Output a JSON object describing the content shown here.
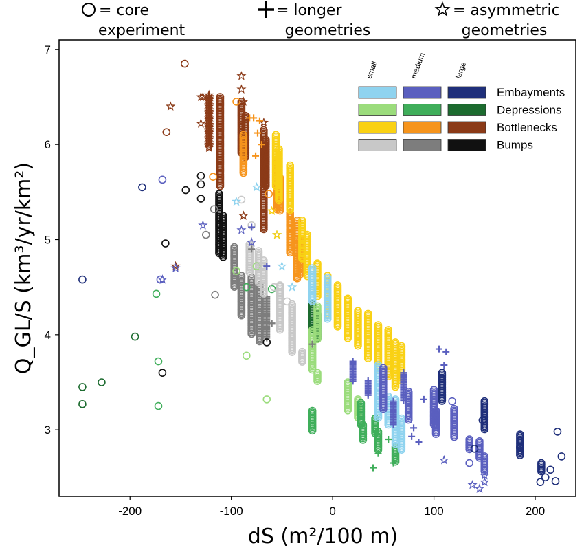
{
  "chart_data": {
    "type": "scatter",
    "xlabel": "dS (m²/100 m)",
    "ylabel": "Q_GL/S (km³/yr/km²)",
    "xlim": [
      -270,
      240
    ],
    "ylim": [
      2.3,
      7.1
    ],
    "xticks": [
      -200,
      -100,
      0,
      100,
      200
    ],
    "yticks": [
      3,
      4,
      5,
      6,
      7
    ],
    "xtick_labels": [
      "-200",
      "-100",
      "0",
      "100",
      "200"
    ],
    "ytick_labels": [
      "3",
      "4",
      "5",
      "6",
      "7"
    ],
    "marker_key": [
      {
        "marker": "circle",
        "text": [
          "= core",
          "experiment"
        ]
      },
      {
        "marker": "plus",
        "text": [
          "= longer",
          "geometries"
        ]
      },
      {
        "marker": "star",
        "text": [
          "= asymmetric",
          "geometries"
        ]
      }
    ],
    "size_labels": [
      "small",
      "medium",
      "large"
    ],
    "legend_placement": "top-right",
    "grid": false,
    "legend": [
      {
        "name": "Embayments",
        "colors": [
          "#8fd3ef",
          "#5a5fbf",
          "#1f2f7a"
        ]
      },
      {
        "name": "Depressions",
        "colors": [
          "#9bdc7c",
          "#3fae5a",
          "#1c6b2f"
        ]
      },
      {
        "name": "Bottlenecks",
        "colors": [
          "#f9d114",
          "#f6941c",
          "#8b3a17"
        ]
      },
      {
        "name": "Bumps",
        "colors": [
          "#c8c8c8",
          "#7d7d7d",
          "#111111"
        ]
      }
    ],
    "groups": [
      {
        "marker": "circle",
        "filled": false,
        "color": "#1f2f7a",
        "points": [
          [
            -247,
            4.58
          ],
          [
            -188,
            5.55
          ],
          [
            148,
            3.1
          ],
          [
            140,
            2.8
          ],
          [
            205,
            2.45
          ],
          [
            210,
            2.5
          ],
          [
            215,
            2.58
          ],
          [
            220,
            2.46
          ],
          [
            222,
            2.98
          ],
          [
            226,
            2.72
          ]
        ]
      },
      {
        "marker": "circle",
        "filled": false,
        "color": "#5a5fbf",
        "points": [
          [
            118,
            3.3
          ],
          [
            -168,
            5.63
          ],
          [
            -170,
            4.58
          ],
          [
            135,
            2.65
          ]
        ]
      },
      {
        "marker": "circle",
        "filled": false,
        "color": "#1c6b2f",
        "points": [
          [
            -247,
            3.45
          ],
          [
            -247,
            3.27
          ],
          [
            -228,
            3.5
          ],
          [
            -195,
            3.98
          ]
        ]
      },
      {
        "marker": "circle",
        "filled": false,
        "color": "#3fae5a",
        "points": [
          [
            -172,
            3.72
          ],
          [
            -172,
            3.25
          ],
          [
            -174,
            4.43
          ],
          [
            -85,
            4.5
          ],
          [
            -60,
            4.48
          ]
        ]
      },
      {
        "marker": "circle",
        "filled": false,
        "color": "#9bdc7c",
        "points": [
          [
            -85,
            3.78
          ],
          [
            -65,
            3.32
          ],
          [
            -95,
            4.67
          ],
          [
            -75,
            4.72
          ]
        ]
      },
      {
        "marker": "circle",
        "filled": false,
        "color": "#8b3a17",
        "points": [
          [
            -146,
            6.85
          ],
          [
            -164,
            6.13
          ]
        ]
      },
      {
        "marker": "circle",
        "filled": false,
        "color": "#f6941c",
        "points": [
          [
            -118,
            5.66
          ],
          [
            -95,
            6.45
          ],
          [
            -63,
            5.48
          ]
        ]
      },
      {
        "marker": "circle",
        "filled": false,
        "color": "#111111",
        "points": [
          [
            -145,
            5.52
          ],
          [
            -165,
            4.96
          ],
          [
            -168,
            3.6
          ],
          [
            -130,
            5.67
          ],
          [
            -130,
            5.58
          ],
          [
            -130,
            5.43
          ],
          [
            -65,
            3.92
          ]
        ]
      },
      {
        "marker": "circle",
        "filled": false,
        "color": "#7d7d7d",
        "points": [
          [
            -116,
            4.42
          ],
          [
            -125,
            5.05
          ],
          [
            -117,
            5.32
          ]
        ]
      },
      {
        "marker": "circle",
        "filled": false,
        "color": "#c8c8c8",
        "points": [
          [
            -90,
            5.42
          ],
          [
            -80,
            5.15
          ],
          [
            -70,
            4.72
          ],
          [
            -58,
            4.5
          ],
          [
            -45,
            4.35
          ]
        ]
      },
      {
        "marker": "star",
        "filled": false,
        "color": "#8b3a17",
        "points": [
          [
            -160,
            6.4
          ],
          [
            -128,
            6.5
          ],
          [
            -130,
            6.22
          ],
          [
            -90,
            6.72
          ],
          [
            -90,
            6.58
          ],
          [
            -88,
            6.45
          ],
          [
            -155,
            4.72
          ],
          [
            -68,
            6.23
          ],
          [
            -88,
            5.25
          ],
          [
            -130,
            6.5
          ]
        ]
      },
      {
        "marker": "star",
        "filled": false,
        "color": "#5a5fbf",
        "points": [
          [
            -128,
            5.15
          ],
          [
            -168,
            4.58
          ],
          [
            -155,
            4.7
          ],
          [
            -80,
            4.97
          ],
          [
            -90,
            5.1
          ],
          [
            110,
            2.68
          ],
          [
            138,
            2.42
          ],
          [
            145,
            2.38
          ],
          [
            150,
            2.45
          ],
          [
            150,
            2.52
          ]
        ]
      },
      {
        "marker": "star",
        "filled": false,
        "color": "#8fd3ef",
        "points": [
          [
            -95,
            5.4
          ],
          [
            -75,
            5.55
          ],
          [
            -55,
            5.05
          ],
          [
            -50,
            4.72
          ],
          [
            -40,
            4.5
          ]
        ]
      },
      {
        "marker": "star",
        "filled": false,
        "color": "#f9d114",
        "points": [
          [
            -60,
            5.3
          ],
          [
            -55,
            5.05
          ]
        ]
      },
      {
        "marker": "plus",
        "filled": false,
        "color": "#5a5fbf",
        "points": [
          [
            -80,
            5.13
          ],
          [
            -65,
            4.72
          ],
          [
            105,
            3.85
          ],
          [
            112,
            3.82
          ],
          [
            110,
            3.68
          ],
          [
            90,
            3.32
          ],
          [
            80,
            3.02
          ],
          [
            78,
            2.93
          ],
          [
            85,
            2.87
          ]
        ]
      },
      {
        "marker": "plus",
        "filled": false,
        "color": "#f6941c",
        "points": [
          [
            -82,
            6.28
          ],
          [
            -78,
            6.28
          ],
          [
            -72,
            6.25
          ],
          [
            -74,
            6.12
          ],
          [
            -70,
            6.0
          ],
          [
            -76,
            5.88
          ],
          [
            -40,
            5.1
          ]
        ]
      },
      {
        "marker": "plus",
        "filled": false,
        "color": "#3fae5a",
        "points": [
          [
            60,
            2.65
          ],
          [
            55,
            2.9
          ],
          [
            45,
            2.75
          ],
          [
            40,
            2.6
          ]
        ]
      },
      {
        "marker": "plus",
        "filled": false,
        "color": "#7d7d7d",
        "points": [
          [
            -80,
            4.9
          ],
          [
            -60,
            4.12
          ],
          [
            -20,
            3.9
          ]
        ]
      }
    ],
    "columns": [
      {
        "x": -112,
        "ylo": 4.85,
        "yhi": 5.48,
        "color": "#111111",
        "marker": "circle"
      },
      {
        "x": -108,
        "ylo": 4.8,
        "yhi": 5.25,
        "color": "#111111",
        "marker": "circle"
      },
      {
        "x": -122,
        "ylo": 5.95,
        "yhi": 6.52,
        "color": "#8b3a17",
        "marker": "star"
      },
      {
        "x": -111,
        "ylo": 5.55,
        "yhi": 6.5,
        "color": "#8b3a17",
        "marker": "circle"
      },
      {
        "x": -90,
        "ylo": 5.9,
        "yhi": 6.45,
        "color": "#8b3a17",
        "marker": "circle"
      },
      {
        "x": -86,
        "ylo": 5.85,
        "yhi": 6.3,
        "color": "#8b3a17",
        "marker": "circle"
      },
      {
        "x": -68,
        "ylo": 5.1,
        "yhi": 6.15,
        "color": "#8b3a17",
        "marker": "circle"
      },
      {
        "x": -66,
        "ylo": 5.55,
        "yhi": 6.05,
        "color": "#8b3a17",
        "marker": "circle"
      },
      {
        "x": -97,
        "ylo": 4.5,
        "yhi": 4.92,
        "color": "#7d7d7d",
        "marker": "circle"
      },
      {
        "x": -90,
        "ylo": 4.2,
        "yhi": 4.62,
        "color": "#7d7d7d",
        "marker": "circle"
      },
      {
        "x": -80,
        "ylo": 4.0,
        "yhi": 4.6,
        "color": "#7d7d7d",
        "marker": "circle"
      },
      {
        "x": -72,
        "ylo": 3.92,
        "yhi": 4.52,
        "color": "#7d7d7d",
        "marker": "circle"
      },
      {
        "x": -65,
        "ylo": 3.95,
        "yhi": 4.4,
        "color": "#7d7d7d",
        "marker": "plus"
      },
      {
        "x": -82,
        "ylo": 4.65,
        "yhi": 4.95,
        "color": "#c8c8c8",
        "marker": "circle"
      },
      {
        "x": -73,
        "ylo": 4.55,
        "yhi": 4.88,
        "color": "#c8c8c8",
        "marker": "circle"
      },
      {
        "x": -68,
        "ylo": 4.42,
        "yhi": 4.78,
        "color": "#c8c8c8",
        "marker": "circle"
      },
      {
        "x": -52,
        "ylo": 4.05,
        "yhi": 4.52,
        "color": "#c8c8c8",
        "marker": "circle"
      },
      {
        "x": -40,
        "ylo": 3.8,
        "yhi": 4.32,
        "color": "#c8c8c8",
        "marker": "circle"
      },
      {
        "x": -30,
        "ylo": 3.7,
        "yhi": 3.82,
        "color": "#c8c8c8",
        "marker": "circle"
      },
      {
        "x": -88,
        "ylo": 5.7,
        "yhi": 6.1,
        "color": "#f6941c",
        "marker": "circle"
      },
      {
        "x": -55,
        "ylo": 5.3,
        "yhi": 5.82,
        "color": "#f6941c",
        "marker": "circle"
      },
      {
        "x": -52,
        "ylo": 5.3,
        "yhi": 5.65,
        "color": "#f6941c",
        "marker": "circle"
      },
      {
        "x": -42,
        "ylo": 4.85,
        "yhi": 5.28,
        "color": "#f6941c",
        "marker": "circle"
      },
      {
        "x": -35,
        "ylo": 4.58,
        "yhi": 5.2,
        "color": "#f6941c",
        "marker": "circle"
      },
      {
        "x": -32,
        "ylo": 4.62,
        "yhi": 5.0,
        "color": "#f6941c",
        "marker": "circle"
      },
      {
        "x": -56,
        "ylo": 5.55,
        "yhi": 6.1,
        "color": "#f9d114",
        "marker": "circle"
      },
      {
        "x": -53,
        "ylo": 5.4,
        "yhi": 5.95,
        "color": "#f9d114",
        "marker": "circle"
      },
      {
        "x": -42,
        "ylo": 5.3,
        "yhi": 5.78,
        "color": "#f9d114",
        "marker": "circle"
      },
      {
        "x": -30,
        "ylo": 4.8,
        "yhi": 5.2,
        "color": "#f9d114",
        "marker": "circle"
      },
      {
        "x": -25,
        "ylo": 4.6,
        "yhi": 5.05,
        "color": "#f9d114",
        "marker": "circle"
      },
      {
        "x": -15,
        "ylo": 4.4,
        "yhi": 4.75,
        "color": "#f9d114",
        "marker": "circle"
      },
      {
        "x": -5,
        "ylo": 4.2,
        "yhi": 4.62,
        "color": "#f9d114",
        "marker": "circle"
      },
      {
        "x": 5,
        "ylo": 4.08,
        "yhi": 4.52,
        "color": "#f9d114",
        "marker": "circle"
      },
      {
        "x": 15,
        "ylo": 3.95,
        "yhi": 4.38,
        "color": "#f9d114",
        "marker": "circle"
      },
      {
        "x": 25,
        "ylo": 3.88,
        "yhi": 4.25,
        "color": "#f9d114",
        "marker": "circle"
      },
      {
        "x": 35,
        "ylo": 3.75,
        "yhi": 4.22,
        "color": "#f9d114",
        "marker": "circle"
      },
      {
        "x": 45,
        "ylo": 3.62,
        "yhi": 4.1,
        "color": "#f9d114",
        "marker": "circle"
      },
      {
        "x": 55,
        "ylo": 3.55,
        "yhi": 4.05,
        "color": "#f9d114",
        "marker": "circle"
      },
      {
        "x": 62,
        "ylo": 3.45,
        "yhi": 3.92,
        "color": "#f9d114",
        "marker": "circle"
      },
      {
        "x": 68,
        "ylo": 3.5,
        "yhi": 3.88,
        "color": "#f9d114",
        "marker": "circle"
      },
      {
        "x": -20,
        "ylo": 4.05,
        "yhi": 4.32,
        "color": "#1c6b2f",
        "marker": "circle"
      },
      {
        "x": -15,
        "ylo": 3.95,
        "yhi": 4.22,
        "color": "#1c6b2f",
        "marker": "circle"
      },
      {
        "x": -20,
        "ylo": 3.62,
        "yhi": 4.05,
        "color": "#9bdc7c",
        "marker": "circle"
      },
      {
        "x": -15,
        "ylo": 3.95,
        "yhi": 4.3,
        "color": "#9bdc7c",
        "marker": "circle"
      },
      {
        "x": -15,
        "ylo": 3.5,
        "yhi": 3.6,
        "color": "#9bdc7c",
        "marker": "circle"
      },
      {
        "x": 15,
        "ylo": 3.2,
        "yhi": 3.5,
        "color": "#9bdc7c",
        "marker": "circle"
      },
      {
        "x": 25,
        "ylo": 3.12,
        "yhi": 3.32,
        "color": "#9bdc7c",
        "marker": "circle"
      },
      {
        "x": -20,
        "ylo": 2.98,
        "yhi": 3.2,
        "color": "#3fae5a",
        "marker": "circle"
      },
      {
        "x": 28,
        "ylo": 3.05,
        "yhi": 3.28,
        "color": "#3fae5a",
        "marker": "circle"
      },
      {
        "x": 30,
        "ylo": 2.88,
        "yhi": 3.05,
        "color": "#3fae5a",
        "marker": "circle"
      },
      {
        "x": 42,
        "ylo": 2.95,
        "yhi": 3.12,
        "color": "#3fae5a",
        "marker": "circle"
      },
      {
        "x": 45,
        "ylo": 2.78,
        "yhi": 2.98,
        "color": "#3fae5a",
        "marker": "circle"
      },
      {
        "x": 62,
        "ylo": 2.65,
        "yhi": 2.82,
        "color": "#3fae5a",
        "marker": "circle"
      },
      {
        "x": -5,
        "ylo": 4.15,
        "yhi": 4.6,
        "color": "#8fd3ef",
        "marker": "circle"
      },
      {
        "x": -20,
        "ylo": 4.35,
        "yhi": 4.7,
        "color": "#8fd3ef",
        "marker": "circle"
      },
      {
        "x": 45,
        "ylo": 3.12,
        "yhi": 3.68,
        "color": "#8fd3ef",
        "marker": "circle"
      },
      {
        "x": 55,
        "ylo": 3.05,
        "yhi": 3.35,
        "color": "#8fd3ef",
        "marker": "circle"
      },
      {
        "x": 62,
        "ylo": 2.85,
        "yhi": 3.32,
        "color": "#8fd3ef",
        "marker": "circle"
      },
      {
        "x": 68,
        "ylo": 2.78,
        "yhi": 3.12,
        "color": "#8fd3ef",
        "marker": "circle"
      },
      {
        "x": 20,
        "ylo": 3.5,
        "yhi": 3.72,
        "color": "#5a5fbf",
        "marker": "plus"
      },
      {
        "x": 35,
        "ylo": 3.35,
        "yhi": 3.52,
        "color": "#5a5fbf",
        "marker": "plus"
      },
      {
        "x": 50,
        "ylo": 3.2,
        "yhi": 3.65,
        "color": "#5a5fbf",
        "marker": "circle"
      },
      {
        "x": 60,
        "ylo": 3.05,
        "yhi": 3.3,
        "color": "#5a5fbf",
        "marker": "plus"
      },
      {
        "x": 70,
        "ylo": 3.3,
        "yhi": 3.6,
        "color": "#5a5fbf",
        "marker": "plus"
      },
      {
        "x": 75,
        "ylo": 3.1,
        "yhi": 3.4,
        "color": "#5a5fbf",
        "marker": "circle"
      },
      {
        "x": 100,
        "ylo": 3.05,
        "yhi": 3.42,
        "color": "#5a5fbf",
        "marker": "circle"
      },
      {
        "x": 102,
        "ylo": 2.95,
        "yhi": 3.2,
        "color": "#5a5fbf",
        "marker": "circle"
      },
      {
        "x": 120,
        "ylo": 2.92,
        "yhi": 3.22,
        "color": "#5a5fbf",
        "marker": "circle"
      },
      {
        "x": 135,
        "ylo": 2.78,
        "yhi": 2.9,
        "color": "#5a5fbf",
        "marker": "circle"
      },
      {
        "x": 145,
        "ylo": 2.7,
        "yhi": 2.88,
        "color": "#5a5fbf",
        "marker": "circle"
      },
      {
        "x": 150,
        "ylo": 2.55,
        "yhi": 2.72,
        "color": "#5a5fbf",
        "marker": "circle"
      },
      {
        "x": 108,
        "ylo": 3.3,
        "yhi": 3.6,
        "color": "#1f2f7a",
        "marker": "circle"
      },
      {
        "x": 150,
        "ylo": 3.0,
        "yhi": 3.3,
        "color": "#1f2f7a",
        "marker": "circle"
      },
      {
        "x": 185,
        "ylo": 2.8,
        "yhi": 2.95,
        "color": "#1f2f7a",
        "marker": "circle"
      },
      {
        "x": 185,
        "ylo": 2.72,
        "yhi": 2.82,
        "color": "#1f2f7a",
        "marker": "circle"
      },
      {
        "x": 206,
        "ylo": 2.55,
        "yhi": 2.65,
        "color": "#1f2f7a",
        "marker": "circle"
      }
    ]
  }
}
